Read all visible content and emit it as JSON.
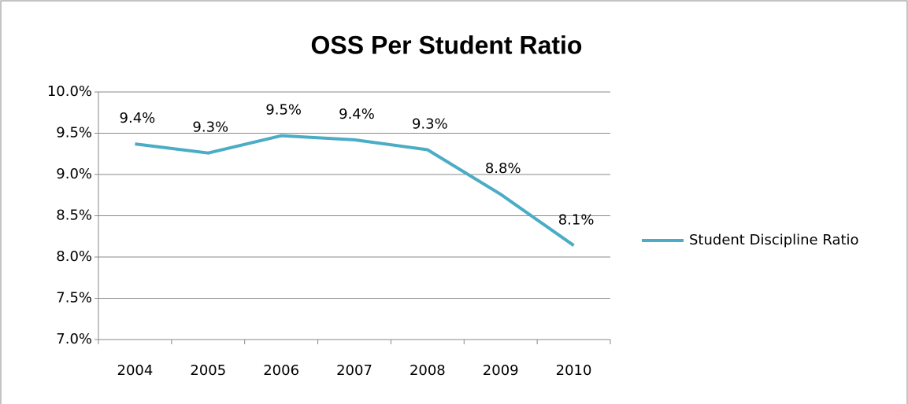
{
  "chart_data": {
    "type": "line",
    "title": "OSS Per Student Ratio",
    "categories": [
      "2004",
      "2005",
      "2006",
      "2007",
      "2008",
      "2009",
      "2010"
    ],
    "series": [
      {
        "name": "Student Discipline Ratio",
        "color": "#4bacc6",
        "values": [
          9.37,
          9.26,
          9.47,
          9.42,
          9.3,
          8.76,
          8.14
        ],
        "value_labels": [
          "9.4%",
          "9.3%",
          "9.5%",
          "9.4%",
          "9.3%",
          "8.8%",
          "8.1%"
        ]
      }
    ],
    "ylim": [
      7,
      10
    ],
    "yticks": [
      {
        "value": 7,
        "label": "7.0%"
      },
      {
        "value": 7.5,
        "label": "7.5%"
      },
      {
        "value": 8,
        "label": "8.0%"
      },
      {
        "value": 8.5,
        "label": "8.5%"
      },
      {
        "value": 9,
        "label": "9.0%"
      },
      {
        "value": 9.5,
        "label": "9.5%"
      },
      {
        "value": 10,
        "label": "10.0%"
      }
    ],
    "grid": true,
    "legend": "right"
  }
}
